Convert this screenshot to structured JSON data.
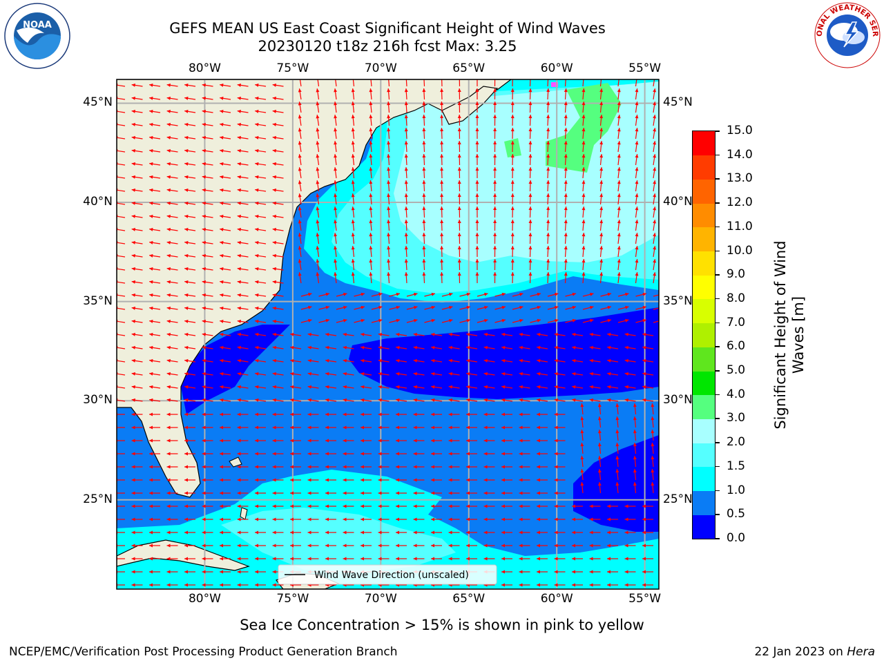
{
  "title": {
    "line1": "GEFS MEAN US East Coast Significant Height of Wind Waves",
    "line2": "20230120 t18z 216h fcst   Max: 3.25"
  },
  "logos": {
    "left": {
      "name": "noaa-logo",
      "text": "NOAA"
    },
    "right": {
      "name": "nws-logo",
      "text": "NATIONAL WEATHER SERVICE"
    }
  },
  "map": {
    "lon_range": [
      -85,
      -54.2
    ],
    "lat_range": [
      20.5,
      46.2
    ],
    "lon_ticks": [
      {
        "value": -80,
        "label": "80°W"
      },
      {
        "value": -75,
        "label": "75°W"
      },
      {
        "value": -70,
        "label": "70°W"
      },
      {
        "value": -65,
        "label": "65°W"
      },
      {
        "value": -60,
        "label": "60°W"
      },
      {
        "value": -55,
        "label": "55°W"
      }
    ],
    "lat_ticks": [
      {
        "value": 45,
        "label": "45°N"
      },
      {
        "value": 40,
        "label": "40°N"
      },
      {
        "value": 35,
        "label": "35°N"
      },
      {
        "value": 30,
        "label": "30°N"
      },
      {
        "value": 25,
        "label": "25°N"
      }
    ],
    "grid": true,
    "land_color": "#efefdc",
    "arrow_color": "#ff0000",
    "legend": {
      "label": "Wind Wave Direction (unscaled)",
      "placement": "bottom-center"
    }
  },
  "colorbar": {
    "title": "Significant Height of Wind Waves [m]",
    "title_lines": [
      "Significant Height of Wind",
      "Waves [m]"
    ],
    "ticks": [
      "0.0",
      "0.5",
      "1.0",
      "1.5",
      "2.0",
      "3.0",
      "4.0",
      "5.0",
      "6.0",
      "7.0",
      "8.0",
      "9.0",
      "10.0",
      "11.0",
      "12.0",
      "13.0",
      "14.0",
      "15.0"
    ],
    "colors": [
      "#0000ff",
      "#0a7cf5",
      "#00ffff",
      "#55ffff",
      "#a8ffff",
      "#55ff7f",
      "#00e600",
      "#5fe61e",
      "#aff000",
      "#d8ff00",
      "#ffff00",
      "#ffe100",
      "#ffb400",
      "#ff8c00",
      "#ff6400",
      "#ff3c00",
      "#ff0000"
    ]
  },
  "footer": {
    "sea_ice_note": "Sea Ice Concentration > 15% is shown in pink to yellow",
    "credit": "NCEP/EMC/Verification Post Processing Product Generation Branch",
    "date": "22 Jan 2023 on ",
    "machine": "Hera"
  }
}
